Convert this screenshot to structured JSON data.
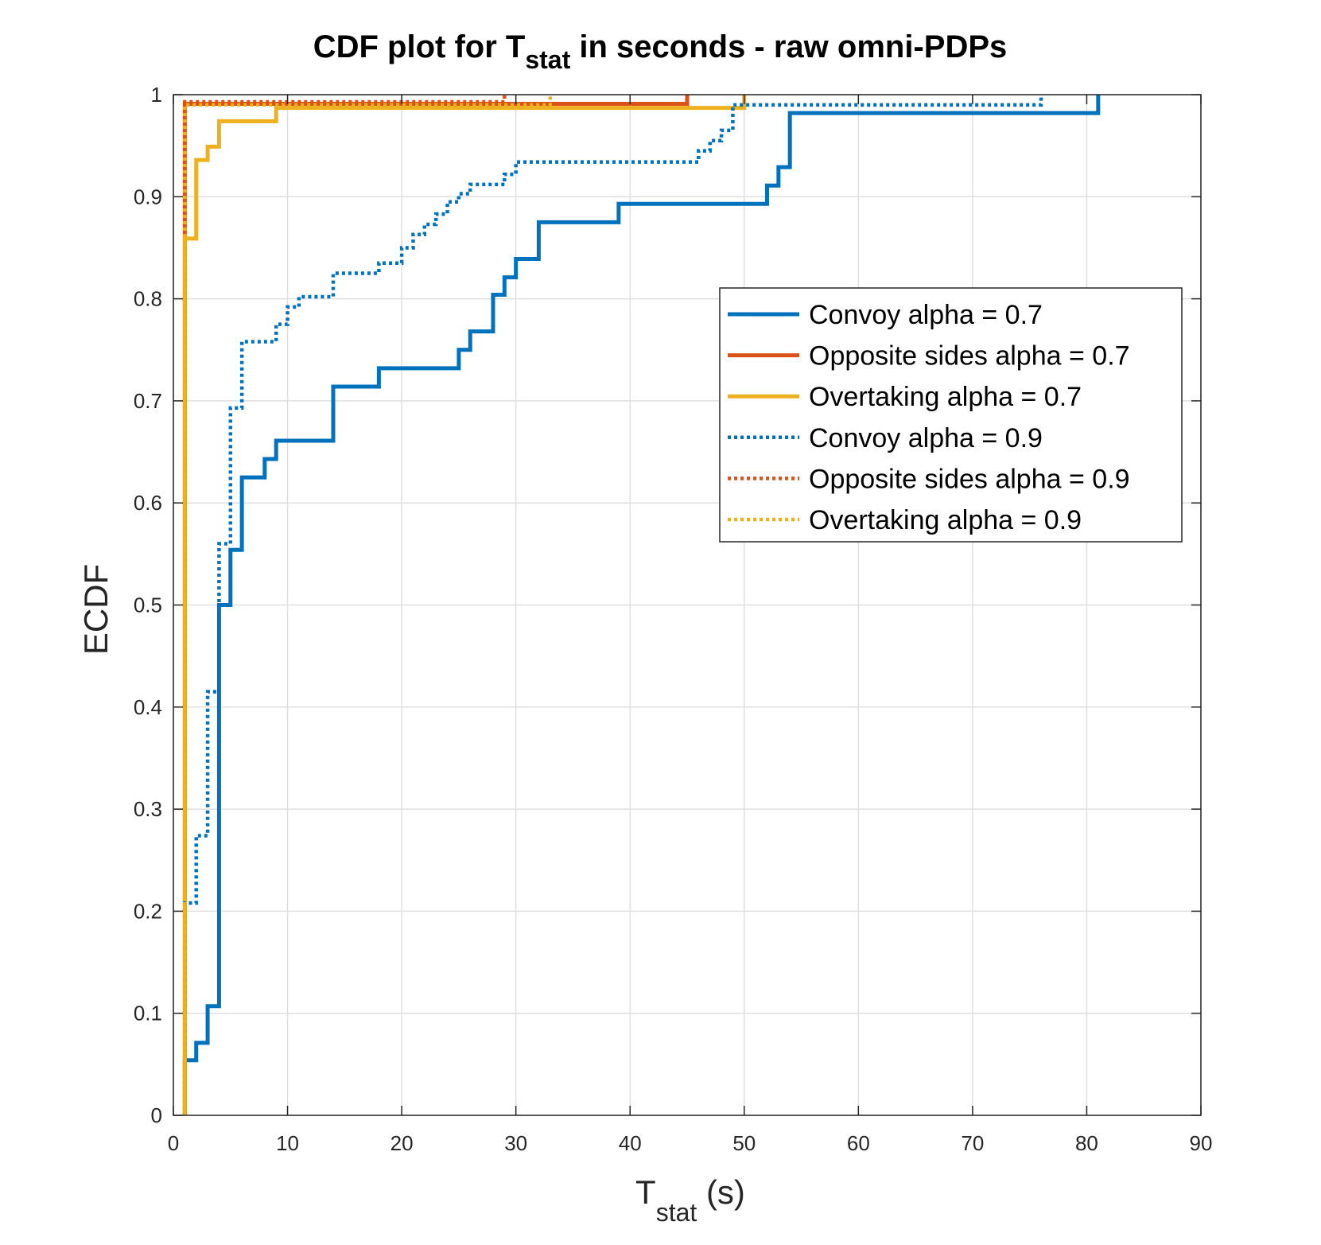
{
  "chart_data": {
    "type": "line",
    "step": true,
    "title": {
      "main": "CDF plot for T",
      "sub": "stat",
      "rest": " in seconds - raw omni-PDPs"
    },
    "xlabel": {
      "main": "T",
      "sub": "stat",
      "rest": " (s)"
    },
    "ylabel": "ECDF",
    "xlim": [
      0,
      90
    ],
    "ylim": [
      0,
      1
    ],
    "xticks": [
      0,
      10,
      20,
      30,
      40,
      50,
      60,
      70,
      80,
      90
    ],
    "yticks": [
      0,
      0.1,
      0.2,
      0.3,
      0.4,
      0.5,
      0.6,
      0.7,
      0.8,
      0.9,
      1
    ],
    "xtick_labels": [
      "0",
      "10",
      "20",
      "30",
      "40",
      "50",
      "60",
      "70",
      "80",
      "90"
    ],
    "ytick_labels": [
      "0",
      "0.1",
      "0.2",
      "0.3",
      "0.4",
      "0.5",
      "0.6",
      "0.7",
      "0.8",
      "0.9",
      "1"
    ],
    "grid": true,
    "legend_position": "upper-right",
    "colors": {
      "blue": "#0072BD",
      "orange": "#D95319",
      "yellow": "#EDB120"
    },
    "series": [
      {
        "name": "Convoy alpha = 0.7",
        "color": "#0072BD",
        "style": "solid",
        "points": [
          [
            1,
            0
          ],
          [
            1,
            0.054
          ],
          [
            2,
            0.054
          ],
          [
            2,
            0.071
          ],
          [
            3,
            0.071
          ],
          [
            3,
            0.107
          ],
          [
            4,
            0.107
          ],
          [
            4,
            0.5
          ],
          [
            5,
            0.5
          ],
          [
            5,
            0.554
          ],
          [
            6,
            0.554
          ],
          [
            6,
            0.625
          ],
          [
            8,
            0.625
          ],
          [
            8,
            0.643
          ],
          [
            9,
            0.643
          ],
          [
            9,
            0.661
          ],
          [
            14,
            0.661
          ],
          [
            14,
            0.714
          ],
          [
            18,
            0.714
          ],
          [
            18,
            0.732
          ],
          [
            25,
            0.732
          ],
          [
            25,
            0.75
          ],
          [
            26,
            0.75
          ],
          [
            26,
            0.768
          ],
          [
            28,
            0.768
          ],
          [
            28,
            0.804
          ],
          [
            29,
            0.804
          ],
          [
            29,
            0.821
          ],
          [
            30,
            0.821
          ],
          [
            30,
            0.839
          ],
          [
            32,
            0.839
          ],
          [
            32,
            0.875
          ],
          [
            39,
            0.875
          ],
          [
            39,
            0.893
          ],
          [
            52,
            0.893
          ],
          [
            52,
            0.911
          ],
          [
            53,
            0.911
          ],
          [
            53,
            0.929
          ],
          [
            54,
            0.929
          ],
          [
            54,
            0.982
          ],
          [
            81,
            0.982
          ],
          [
            81,
            1
          ]
        ]
      },
      {
        "name": "Opposite sides alpha = 0.7",
        "color": "#D95319",
        "style": "solid",
        "points": [
          [
            1,
            0
          ],
          [
            1,
            0.991
          ],
          [
            45,
            0.991
          ],
          [
            45,
            1
          ]
        ]
      },
      {
        "name": "Overtaking alpha = 0.7",
        "color": "#EDB120",
        "style": "solid",
        "points": [
          [
            1,
            0
          ],
          [
            1,
            0.859
          ],
          [
            2,
            0.859
          ],
          [
            2,
            0.936
          ],
          [
            3,
            0.936
          ],
          [
            3,
            0.949
          ],
          [
            4,
            0.949
          ],
          [
            4,
            0.974
          ],
          [
            9,
            0.974
          ],
          [
            9,
            0.987
          ],
          [
            50,
            0.987
          ],
          [
            50,
            1
          ]
        ]
      },
      {
        "name": "Convoy alpha = 0.9",
        "color": "#0072BD",
        "style": "dotted",
        "points": [
          [
            1,
            0
          ],
          [
            1,
            0.208
          ],
          [
            2,
            0.208
          ],
          [
            2,
            0.274
          ],
          [
            3,
            0.274
          ],
          [
            3,
            0.415
          ],
          [
            4,
            0.415
          ],
          [
            4,
            0.56
          ],
          [
            5,
            0.56
          ],
          [
            5,
            0.693
          ],
          [
            6,
            0.693
          ],
          [
            6,
            0.758
          ],
          [
            9,
            0.758
          ],
          [
            9,
            0.775
          ],
          [
            10,
            0.775
          ],
          [
            10,
            0.792
          ],
          [
            11,
            0.792
          ],
          [
            11,
            0.802
          ],
          [
            14,
            0.802
          ],
          [
            14,
            0.825
          ],
          [
            18,
            0.825
          ],
          [
            18,
            0.835
          ],
          [
            20,
            0.835
          ],
          [
            20,
            0.85
          ],
          [
            21,
            0.85
          ],
          [
            21,
            0.863
          ],
          [
            22,
            0.863
          ],
          [
            22,
            0.873
          ],
          [
            23,
            0.873
          ],
          [
            23,
            0.883
          ],
          [
            24,
            0.883
          ],
          [
            24,
            0.895
          ],
          [
            25,
            0.895
          ],
          [
            25,
            0.903
          ],
          [
            26,
            0.903
          ],
          [
            26,
            0.912
          ],
          [
            29,
            0.912
          ],
          [
            29,
            0.922
          ],
          [
            30,
            0.922
          ],
          [
            30,
            0.934
          ],
          [
            46,
            0.934
          ],
          [
            46,
            0.945
          ],
          [
            47,
            0.945
          ],
          [
            47,
            0.955
          ],
          [
            48,
            0.955
          ],
          [
            48,
            0.965
          ],
          [
            49,
            0.965
          ],
          [
            49,
            0.99
          ],
          [
            76,
            0.99
          ],
          [
            76,
            1
          ]
        ]
      },
      {
        "name": "Opposite sides alpha = 0.9",
        "color": "#D95319",
        "style": "dotted",
        "points": [
          [
            1,
            0
          ],
          [
            1,
            0.993
          ],
          [
            29,
            0.993
          ],
          [
            29,
            1
          ]
        ]
      },
      {
        "name": "Overtaking alpha = 0.9",
        "color": "#EDB120",
        "style": "dotted",
        "points": [
          [
            1,
            0
          ],
          [
            1,
            0.99
          ],
          [
            33,
            0.99
          ],
          [
            33,
            1
          ]
        ]
      }
    ]
  }
}
